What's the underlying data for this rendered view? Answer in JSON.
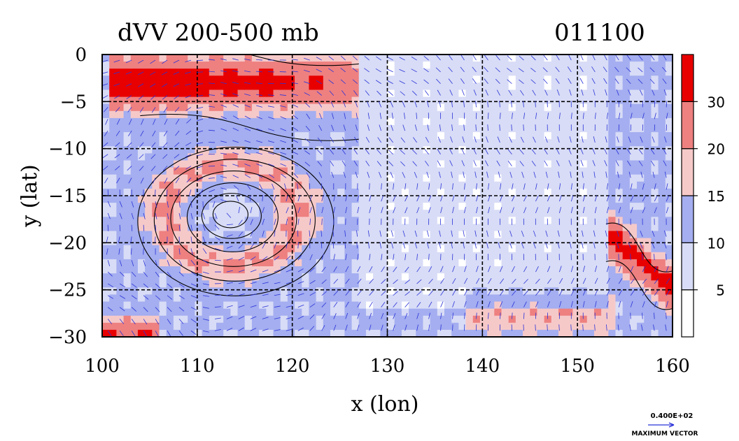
{
  "title_left": "dVV 200-500 mb",
  "title_right": "011100",
  "x_axis": {
    "label": "x (lon)",
    "range": [
      100,
      160
    ],
    "ticks": [
      100,
      110,
      120,
      130,
      140,
      150,
      160
    ],
    "tick_labels": [
      "100",
      "110",
      "120",
      "130",
      "140",
      "150",
      "160"
    ]
  },
  "y_axis": {
    "label": "y (lat)",
    "range": [
      -30,
      0
    ],
    "ticks": [
      0,
      -5,
      -10,
      -15,
      -20,
      -25,
      -30
    ],
    "tick_labels": [
      "0",
      "−5",
      "−10",
      "−15",
      "−20",
      "−25",
      "−30"
    ]
  },
  "grid": true,
  "colorbar": {
    "levels": [
      0,
      5,
      10,
      15,
      20,
      30,
      40
    ],
    "labels": [
      "5",
      "10",
      "15",
      "20",
      "30"
    ],
    "colors": [
      "#ffffff",
      "#d8dcf6",
      "#a4aef0",
      "#f6c9c9",
      "#ee8080",
      "#e80000"
    ]
  },
  "vector_key": {
    "value": "0.400E+02",
    "caption": "MAXIMUM VECTOR"
  },
  "colors": {
    "vector": "#2a33d8",
    "contour": "#000000",
    "grid": "#000000"
  },
  "fields": {
    "cyclone_center": {
      "lon": 113.5,
      "lat": -17
    },
    "high_band": {
      "lon_from": 104,
      "lon_to": 127,
      "lat": -3
    },
    "southeast_band": {
      "lon_from": 153,
      "lon_to": 160,
      "lat": -22
    }
  }
}
